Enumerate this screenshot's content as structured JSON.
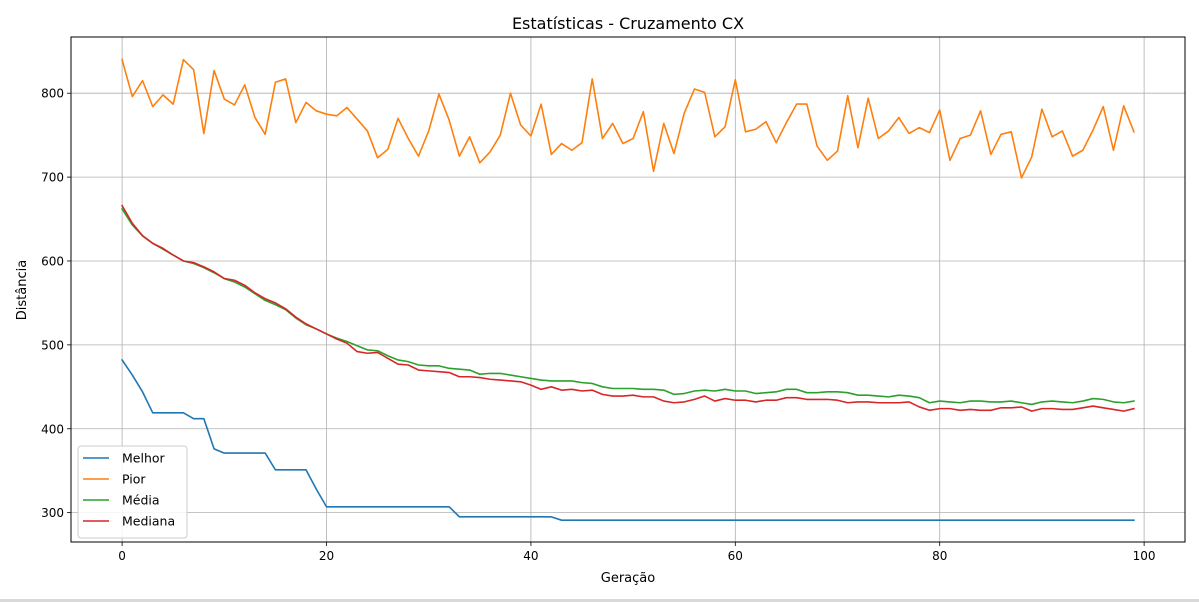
{
  "chart_data": {
    "type": "line",
    "title": "Estatísticas - Cruzamento CX",
    "xlabel": "Geração",
    "ylabel": "Distância",
    "xlim": [
      -5,
      104
    ],
    "ylim": [
      265,
      867
    ],
    "xticks": [
      0,
      20,
      40,
      60,
      80,
      100
    ],
    "yticks": [
      300,
      400,
      500,
      600,
      700,
      800
    ],
    "grid": true,
    "legend_position": "lower-left",
    "x": [
      0,
      1,
      2,
      3,
      4,
      5,
      6,
      7,
      8,
      9,
      10,
      11,
      12,
      13,
      14,
      15,
      16,
      17,
      18,
      19,
      20,
      21,
      22,
      23,
      24,
      25,
      26,
      27,
      28,
      29,
      30,
      31,
      32,
      33,
      34,
      35,
      36,
      37,
      38,
      39,
      40,
      41,
      42,
      43,
      44,
      45,
      46,
      47,
      48,
      49,
      50,
      51,
      52,
      53,
      54,
      55,
      56,
      57,
      58,
      59,
      60,
      61,
      62,
      63,
      64,
      65,
      66,
      67,
      68,
      69,
      70,
      71,
      72,
      73,
      74,
      75,
      76,
      77,
      78,
      79,
      80,
      81,
      82,
      83,
      84,
      85,
      86,
      87,
      88,
      89,
      90,
      91,
      92,
      93,
      94,
      95,
      96,
      97,
      98,
      99
    ],
    "series": [
      {
        "name": "Melhor",
        "color": "#1f77b4",
        "values": [
          482,
          464,
          444,
          419,
          419,
          419,
          419,
          412,
          412,
          376,
          371,
          371,
          371,
          371,
          371,
          351,
          351,
          351,
          351,
          328,
          307,
          307,
          307,
          307,
          307,
          307,
          307,
          307,
          307,
          307,
          307,
          307,
          307,
          295,
          295,
          295,
          295,
          295,
          295,
          295,
          295,
          295,
          295,
          291,
          291,
          291,
          291,
          291,
          291,
          291,
          291,
          291,
          291,
          291,
          291,
          291,
          291,
          291,
          291,
          291,
          291,
          291,
          291,
          291,
          291,
          291,
          291,
          291,
          291,
          291,
          291,
          291,
          291,
          291,
          291,
          291,
          291,
          291,
          291,
          291,
          291,
          291,
          291,
          291,
          291,
          291,
          291,
          291,
          291,
          291,
          291,
          291,
          291,
          291,
          291,
          291,
          291,
          291,
          291,
          291
        ]
      },
      {
        "name": "Pior",
        "color": "#ff7f0e",
        "values": [
          840,
          796,
          815,
          784,
          798,
          787,
          840,
          828,
          752,
          827,
          793,
          786,
          810,
          771,
          751,
          813,
          817,
          765,
          789,
          779,
          775,
          773,
          783,
          769,
          755,
          723,
          733,
          770,
          746,
          725,
          755,
          799,
          768,
          725,
          748,
          717,
          730,
          750,
          800,
          762,
          749,
          787,
          727,
          740,
          732,
          741,
          817,
          746,
          764,
          740,
          746,
          778,
          707,
          764,
          728,
          776,
          805,
          801,
          748,
          760,
          816,
          754,
          757,
          766,
          741,
          765,
          787,
          787,
          737,
          720,
          731,
          797,
          735,
          794,
          746,
          755,
          771,
          752,
          759,
          753,
          780,
          720,
          746,
          750,
          779,
          727,
          751,
          754,
          699,
          724,
          781,
          748,
          755,
          725,
          732,
          756,
          784,
          732,
          785,
          754
        ]
      },
      {
        "name": "Média",
        "color": "#2ca02c",
        "values": [
          662,
          643,
          630,
          621,
          614,
          607,
          600,
          597,
          592,
          586,
          579,
          575,
          569,
          561,
          553,
          548,
          542,
          532,
          524,
          519,
          513,
          508,
          504,
          499,
          494,
          493,
          487,
          482,
          480,
          476,
          475,
          475,
          472,
          471,
          470,
          465,
          466,
          466,
          464,
          462,
          460,
          458,
          457,
          457,
          457,
          455,
          454,
          450,
          448,
          448,
          448,
          447,
          447,
          446,
          441,
          442,
          445,
          446,
          445,
          447,
          445,
          445,
          442,
          443,
          444,
          447,
          447,
          443,
          443,
          444,
          444,
          443,
          440,
          440,
          439,
          438,
          440,
          439,
          437,
          431,
          433,
          432,
          431,
          433,
          433,
          432,
          432,
          433,
          431,
          429,
          432,
          433,
          432,
          431,
          433,
          436,
          435,
          432,
          431,
          433
        ]
      },
      {
        "name": "Mediana",
        "color": "#d62728",
        "values": [
          666,
          645,
          630,
          621,
          615,
          607,
          600,
          598,
          593,
          587,
          579,
          577,
          571,
          562,
          555,
          550,
          543,
          533,
          525,
          519,
          513,
          507,
          502,
          492,
          490,
          491,
          484,
          477,
          476,
          470,
          469,
          468,
          467,
          462,
          462,
          461,
          459,
          458,
          457,
          456,
          452,
          447,
          450,
          446,
          447,
          445,
          446,
          441,
          439,
          439,
          440,
          438,
          438,
          433,
          431,
          432,
          435,
          439,
          433,
          436,
          434,
          434,
          432,
          434,
          434,
          437,
          437,
          435,
          435,
          435,
          434,
          431,
          432,
          432,
          431,
          431,
          431,
          432,
          426,
          422,
          424,
          424,
          422,
          423,
          422,
          422,
          425,
          425,
          426,
          421,
          424,
          424,
          423,
          423,
          425,
          427,
          425,
          423,
          421,
          424
        ]
      }
    ]
  }
}
